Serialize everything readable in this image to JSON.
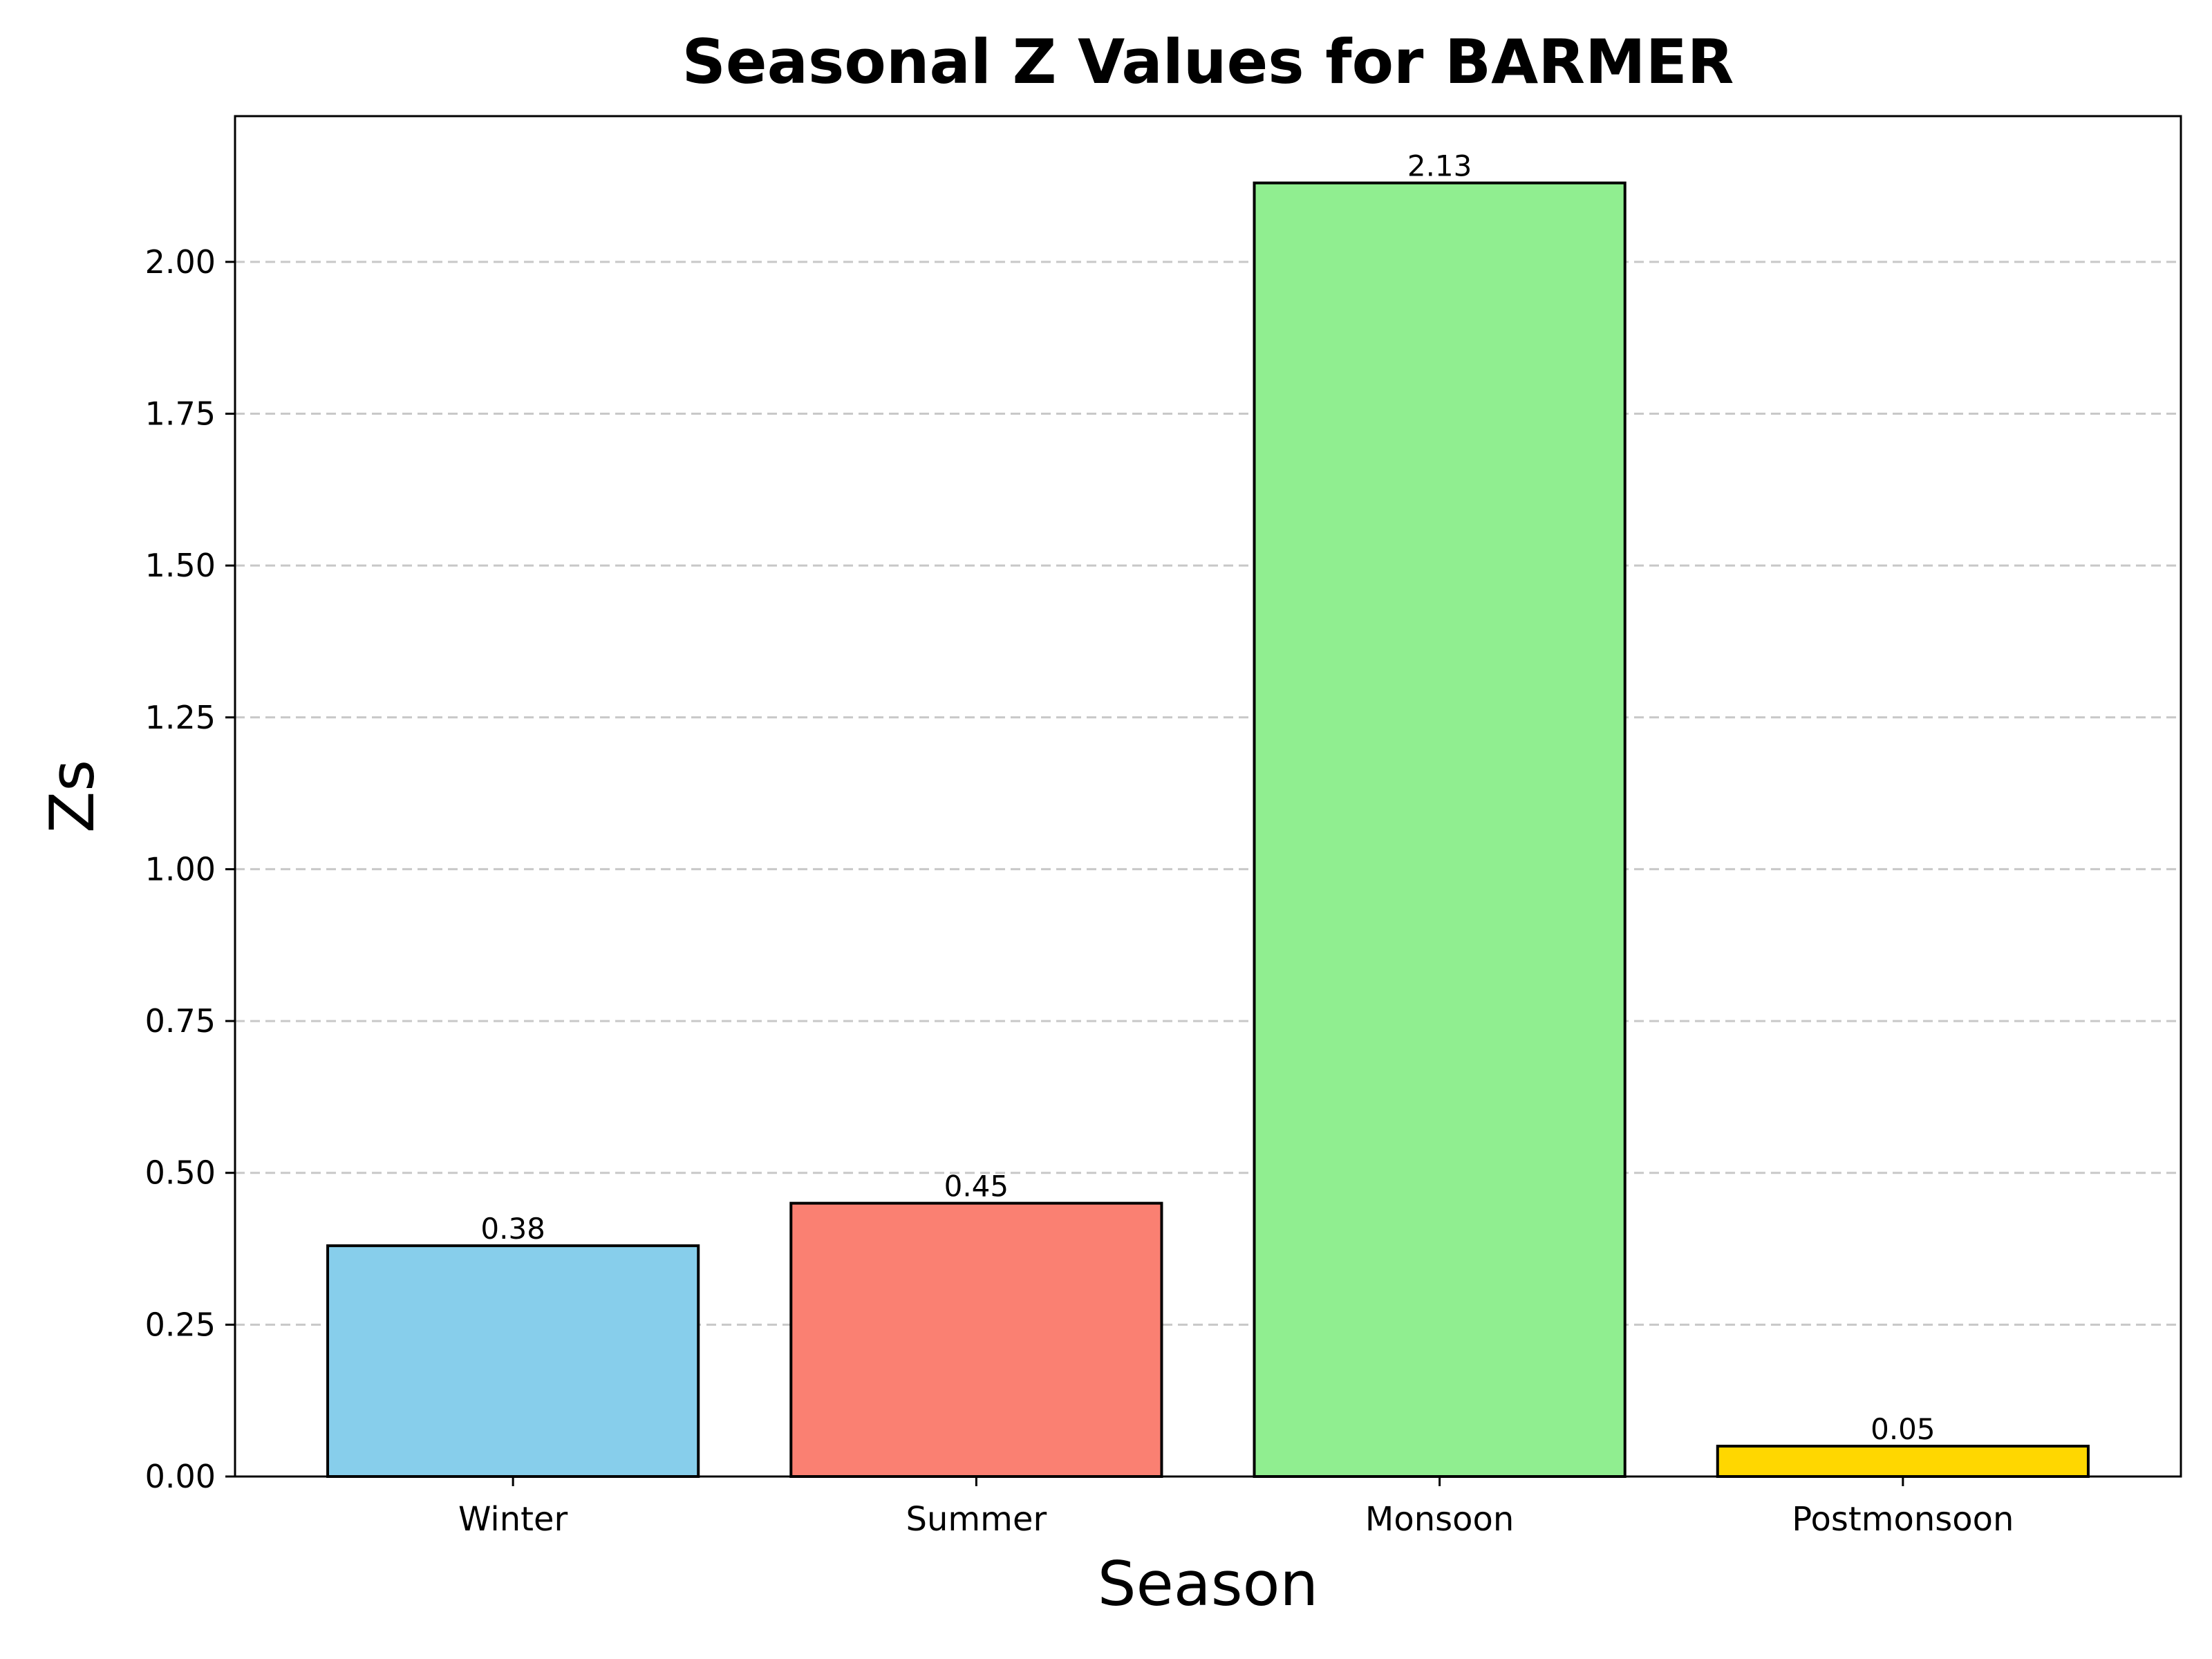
{
  "chart_data": {
    "type": "bar",
    "title": "Seasonal Z Values for BARMER",
    "xlabel": "Season",
    "ylabel": "Zs",
    "categories": [
      "Winter",
      "Summer",
      "Monsoon",
      "Postmonsoon"
    ],
    "values": [
      0.38,
      0.45,
      2.13,
      0.05
    ],
    "colors": [
      "#87CEEB",
      "#FA8072",
      "#90EE90",
      "#FFD700"
    ],
    "bar_edge_color": "#000000",
    "data_labels": [
      "0.38",
      "0.45",
      "2.13",
      "0.05"
    ],
    "ylim": [
      0,
      2.24
    ],
    "yticks": [
      0,
      0.25,
      0.5,
      0.75,
      1.0,
      1.25,
      1.5,
      1.75,
      2.0
    ],
    "ytick_labels": [
      "0.00",
      "0.25",
      "0.50",
      "0.75",
      "1.00",
      "1.25",
      "1.50",
      "1.75",
      "2.00"
    ],
    "grid": "y-dashed",
    "grid_color": "#c8c8c8",
    "legend": "none"
  }
}
